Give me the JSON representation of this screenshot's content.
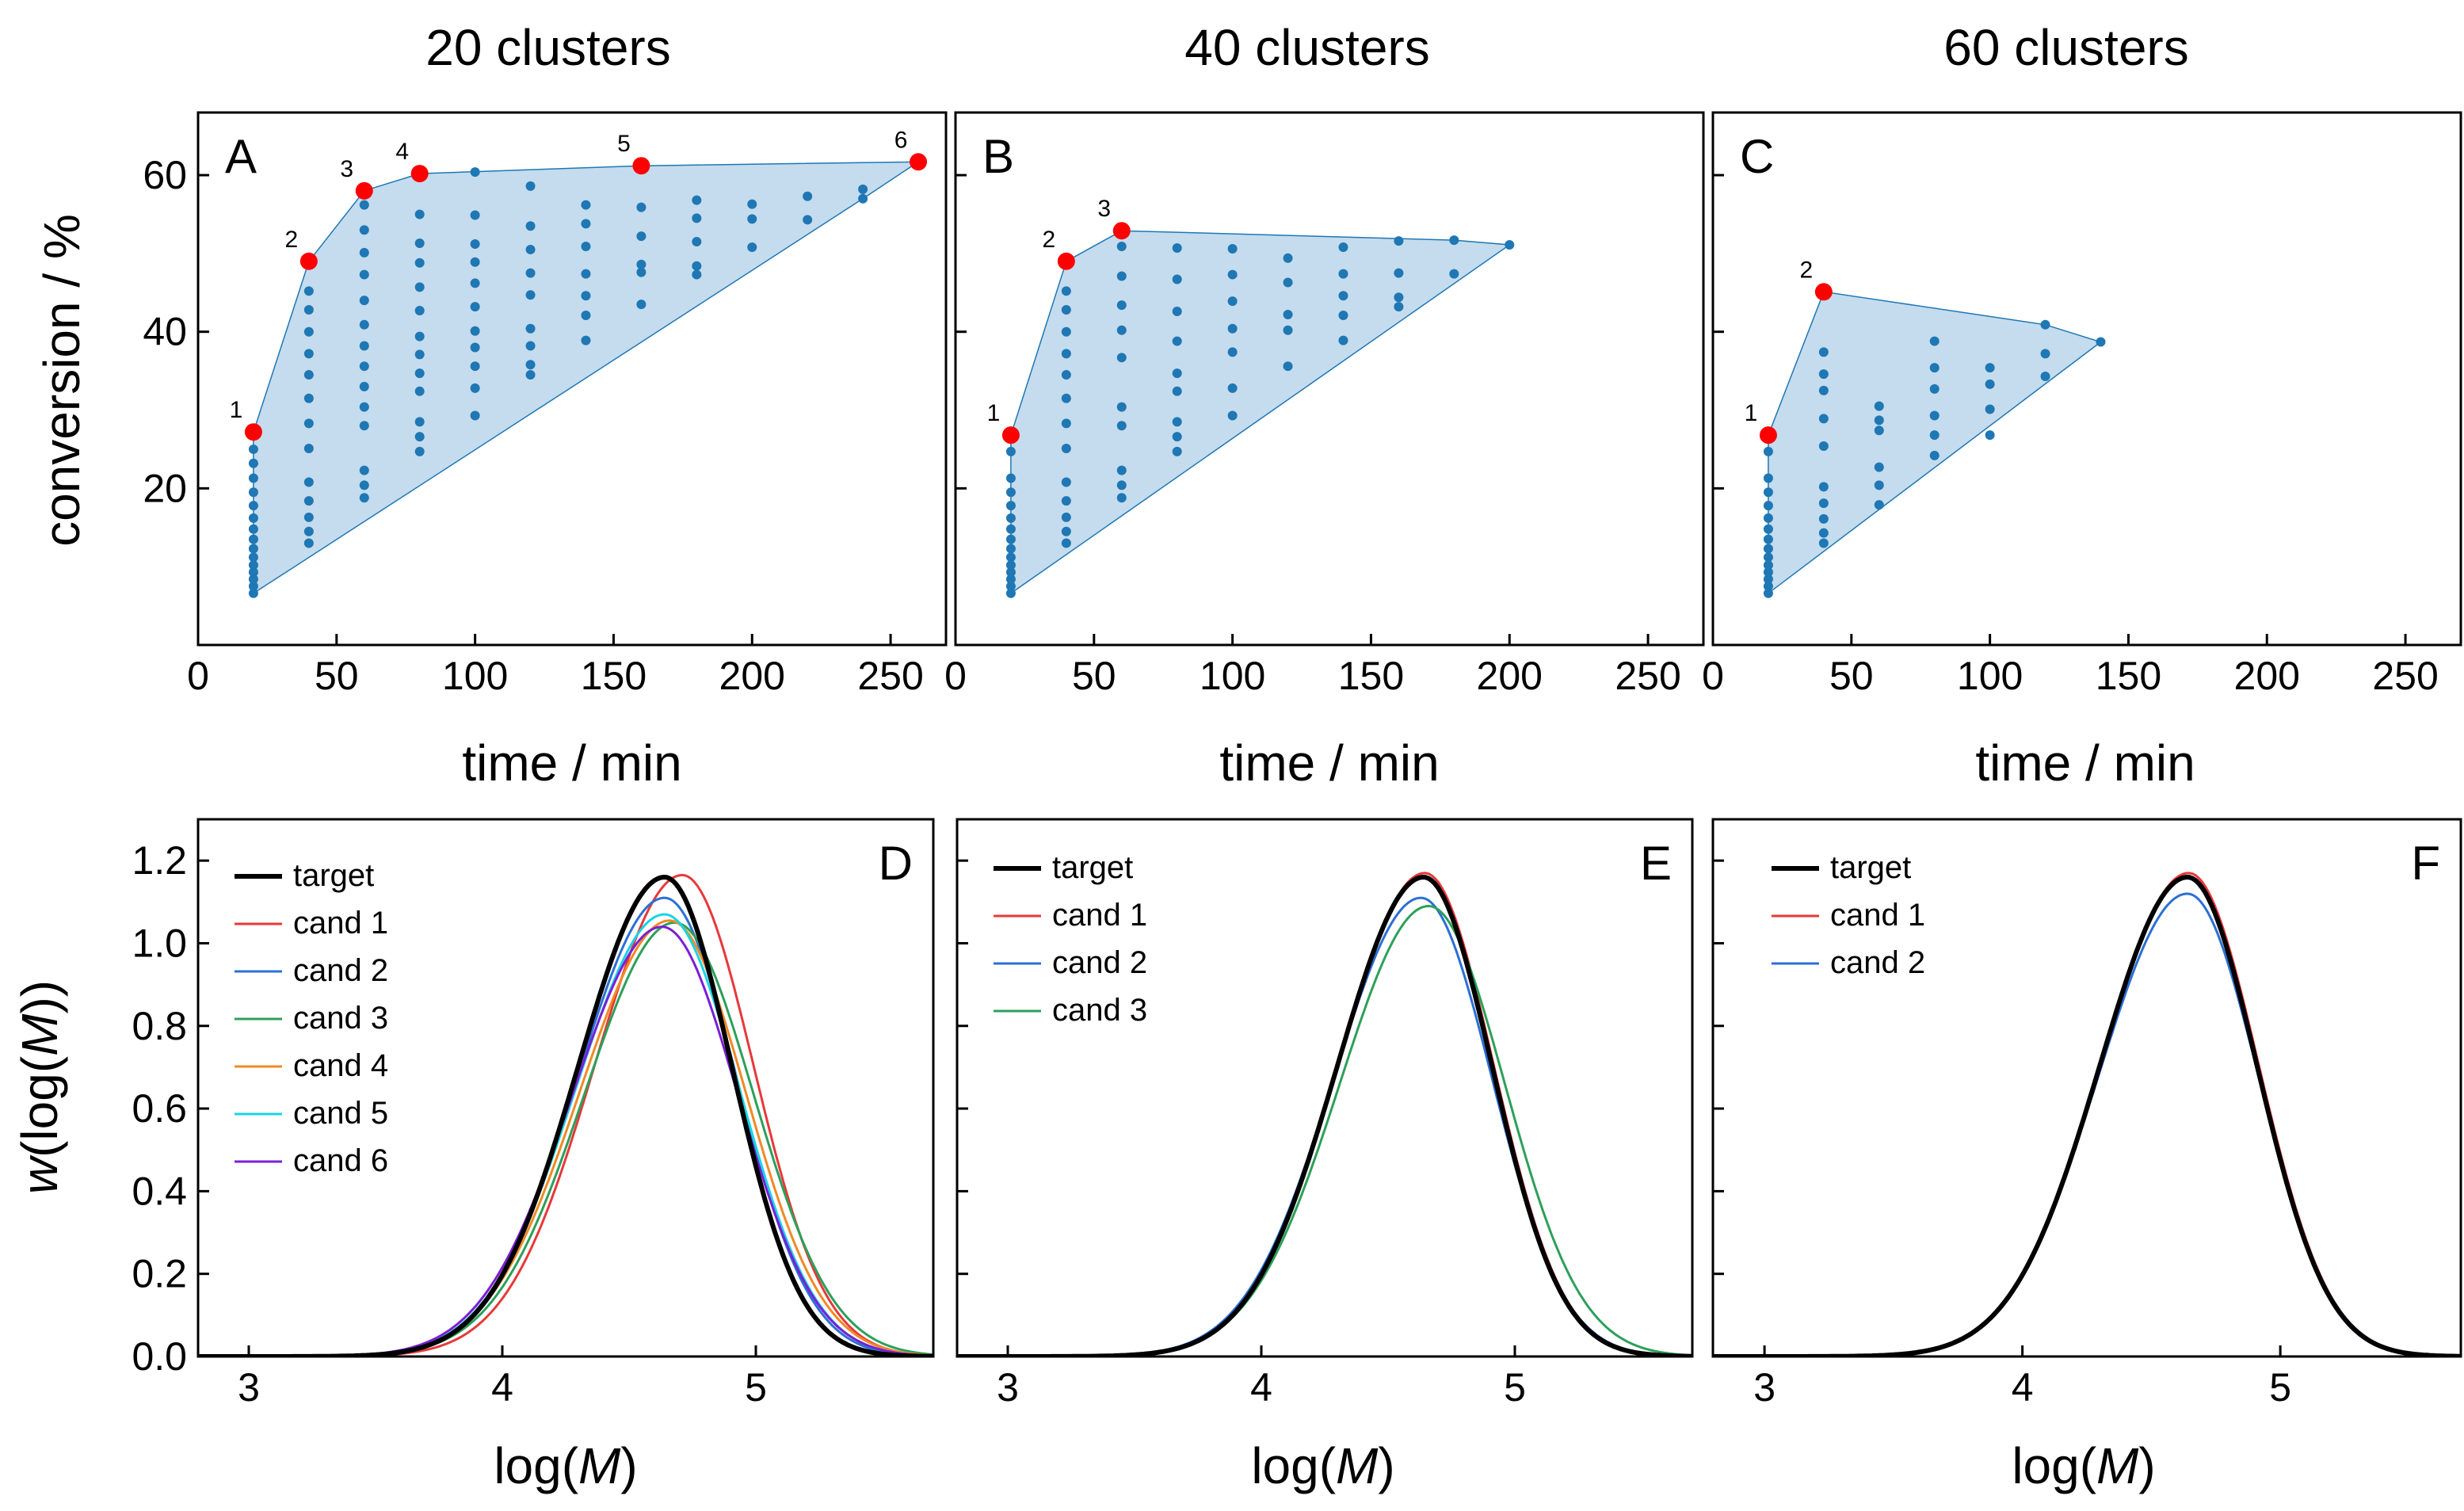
{
  "column_titles": [
    "20 clusters",
    "40 clusters",
    "60 clusters"
  ],
  "axis_titles": {
    "top_x": "time / min",
    "top_y": "conversion / %",
    "bottom_x_prefix": "log(",
    "bottom_x_var": "M",
    "bottom_x_suffix": ")",
    "bottom_y_w": "w",
    "bottom_y_mid": "(log(",
    "bottom_y_var": "M",
    "bottom_y_end": "))"
  },
  "colors": {
    "hull_fill": "#c4dcee",
    "hull_stroke": "#1f77b4",
    "grid_point": "#1f77b4",
    "candidate_point": "#ff0000",
    "target": "#000000",
    "cand1": "#e8383a",
    "cand2": "#2b6fd6",
    "cand3": "#2ca05a",
    "cand4": "#f08a24",
    "cand5": "#19d4e6",
    "cand6": "#7a1fd6"
  },
  "chart_data": [
    {
      "type": "scatter",
      "panel": "A",
      "title": "20 clusters",
      "xlabel": "time / min",
      "ylabel": "conversion / %",
      "xlim": [
        0,
        270
      ],
      "ylim": [
        0,
        68
      ],
      "xticks": [
        "0",
        "50",
        "100",
        "150",
        "200",
        "250"
      ],
      "yticks": [
        "20",
        "40",
        "60"
      ],
      "hull": [
        [
          20,
          6.6
        ],
        [
          20,
          27.2
        ],
        [
          40,
          49
        ],
        [
          60,
          58
        ],
        [
          80,
          60.2
        ],
        [
          160,
          61.2
        ],
        [
          260,
          61.7
        ],
        [
          240,
          57
        ]
      ],
      "grid_columns": [
        {
          "x": 20,
          "y": [
            6.6,
            7.5,
            8.4,
            9.3,
            10.2,
            11.2,
            12.3,
            13.5,
            14.8,
            16.2,
            17.8,
            19.5,
            21.3,
            23.2,
            25.0
          ]
        },
        {
          "x": 40,
          "y": [
            13,
            14.5,
            16.3,
            18.4,
            20.8,
            25.1,
            28.3,
            31.5,
            34.5,
            37.2,
            40,
            42.8,
            45.2
          ]
        },
        {
          "x": 60,
          "y": [
            18.8,
            20.4,
            22.3,
            28,
            30.4,
            33,
            35.6,
            38.2,
            40.9,
            44,
            47.3,
            50.1,
            53,
            56.2
          ]
        },
        {
          "x": 80,
          "y": [
            24.7,
            26.6,
            28.5,
            32.4,
            34.7,
            37.1,
            39.4,
            42.7,
            45.7,
            48.8,
            51.3,
            55
          ]
        },
        {
          "x": 100,
          "y": [
            29.3,
            32.8,
            35.6,
            38,
            40.1,
            43.2,
            46.2,
            48.9,
            51.2,
            54.9,
            60.4
          ]
        },
        {
          "x": 120,
          "y": [
            34.5,
            35.8,
            38.2,
            40.4,
            44.7,
            47.5,
            50.5,
            53.5,
            58.6
          ]
        },
        {
          "x": 140,
          "y": [
            38.9,
            42.1,
            44.6,
            47.4,
            50.9,
            53.8,
            56.2
          ]
        },
        {
          "x": 160,
          "y": [
            43.5,
            47.6,
            48.6,
            52.2,
            55.9
          ]
        },
        {
          "x": 180,
          "y": [
            47.3,
            48.4,
            51.5,
            54.5,
            56.8
          ]
        },
        {
          "x": 200,
          "y": [
            50.8,
            54.4,
            56.3
          ]
        },
        {
          "x": 220,
          "y": [
            54.3,
            57.3
          ]
        },
        {
          "x": 240,
          "y": [
            57,
            58.2
          ]
        }
      ],
      "candidates": [
        {
          "label": "1",
          "x": 20,
          "y": 27.2
        },
        {
          "label": "2",
          "x": 40,
          "y": 49.0
        },
        {
          "label": "3",
          "x": 60,
          "y": 58.0
        },
        {
          "label": "4",
          "x": 80,
          "y": 60.2
        },
        {
          "label": "5",
          "x": 160,
          "y": 61.2
        },
        {
          "label": "6",
          "x": 260,
          "y": 61.7
        }
      ]
    },
    {
      "type": "scatter",
      "panel": "B",
      "title": "40 clusters",
      "xlabel": "time / min",
      "ylabel": "conversion / %",
      "xlim": [
        0,
        270
      ],
      "ylim": [
        0,
        68
      ],
      "xticks": [
        "0",
        "50",
        "100",
        "150",
        "200",
        "250"
      ],
      "yticks": [
        "20",
        "40",
        "60"
      ],
      "hull": [
        [
          20,
          6.6
        ],
        [
          20,
          26.8
        ],
        [
          40,
          49
        ],
        [
          60,
          52.9
        ],
        [
          180,
          51.7
        ],
        [
          200,
          51.1
        ]
      ],
      "grid_columns": [
        {
          "x": 20,
          "y": [
            6.6,
            7.5,
            8.4,
            9.3,
            10.2,
            11.2,
            12.3,
            13.5,
            14.8,
            16.2,
            17.8,
            19.5,
            21.3,
            24.7
          ]
        },
        {
          "x": 40,
          "y": [
            13,
            14.5,
            16.3,
            18.4,
            20.8,
            25.1,
            28.3,
            31.5,
            34.5,
            37.2,
            40,
            42.8,
            45.2
          ]
        },
        {
          "x": 60,
          "y": [
            18.8,
            20.4,
            22.3,
            28,
            30.4,
            36.7,
            40.2,
            43.4,
            47.1,
            50.9
          ]
        },
        {
          "x": 80,
          "y": [
            24.7,
            26.6,
            28.5,
            32.4,
            34.7,
            38.8,
            42.6,
            46.7,
            50.7
          ]
        },
        {
          "x": 100,
          "y": [
            29.3,
            32.8,
            37.4,
            40.4,
            43.9,
            47.3,
            50.6
          ]
        },
        {
          "x": 120,
          "y": [
            35.6,
            40.2,
            42.2,
            46.3,
            49.4
          ]
        },
        {
          "x": 140,
          "y": [
            38.9,
            42.1,
            44.6,
            47.4,
            50.8
          ]
        },
        {
          "x": 160,
          "y": [
            43.2,
            44.4,
            47.5,
            51.6
          ]
        },
        {
          "x": 180,
          "y": [
            47.4,
            51.7
          ]
        },
        {
          "x": 200,
          "y": [
            51.1
          ]
        }
      ],
      "candidates": [
        {
          "label": "1",
          "x": 20,
          "y": 26.8
        },
        {
          "label": "2",
          "x": 40,
          "y": 49.0
        },
        {
          "label": "3",
          "x": 60,
          "y": 52.9
        }
      ]
    },
    {
      "type": "scatter",
      "panel": "C",
      "title": "60 clusters",
      "xlabel": "time / min",
      "ylabel": "conversion / %",
      "xlim": [
        0,
        270
      ],
      "ylim": [
        0,
        68
      ],
      "xticks": [
        "0",
        "50",
        "100",
        "150",
        "200",
        "250"
      ],
      "yticks": [
        "20",
        "40",
        "60"
      ],
      "hull": [
        [
          20,
          6.6
        ],
        [
          20,
          26.8
        ],
        [
          40,
          45.1
        ],
        [
          120,
          40.9
        ],
        [
          140,
          38.7
        ]
      ],
      "grid_columns": [
        {
          "x": 20,
          "y": [
            6.6,
            7.5,
            8.4,
            9.3,
            10.2,
            11.2,
            12.3,
            13.5,
            14.8,
            16.2,
            17.8,
            19.5,
            21.3,
            24.7
          ]
        },
        {
          "x": 40,
          "y": [
            13,
            14.3,
            16.1,
            18.1,
            20.2,
            25.4,
            28.9,
            32.5,
            34.6,
            37.4
          ]
        },
        {
          "x": 60,
          "y": [
            17.9,
            20.4,
            22.7,
            27.4,
            28.7,
            30.5
          ]
        },
        {
          "x": 80,
          "y": [
            24.2,
            26.8,
            29.3,
            32.7,
            35.4,
            38.8
          ]
        },
        {
          "x": 100,
          "y": [
            26.8,
            30.1,
            33.3,
            35.4
          ]
        },
        {
          "x": 120,
          "y": [
            34.3,
            37.2,
            40.9
          ]
        },
        {
          "x": 140,
          "y": [
            38.7
          ]
        }
      ],
      "candidates": [
        {
          "label": "1",
          "x": 20,
          "y": 26.8
        },
        {
          "label": "2",
          "x": 40,
          "y": 45.1
        }
      ]
    },
    {
      "type": "line",
      "panel": "D",
      "xlabel": "log(M)",
      "ylabel": "w(log(M))",
      "xlim": [
        2.8,
        5.7
      ],
      "ylim": [
        0,
        1.3
      ],
      "xticks": [
        "3",
        "4",
        "5"
      ],
      "yticks": [
        "0.0",
        "0.2",
        "0.4",
        "0.6",
        "0.8",
        "1.0",
        "1.2"
      ],
      "series": [
        {
          "name": "target",
          "key": "target",
          "mu": 4.64,
          "sigma_left": 0.34,
          "sigma_right": 0.265,
          "peak": 1.16
        },
        {
          "name": "cand 1",
          "key": "cand1",
          "mu": 4.71,
          "sigma_left": 0.345,
          "sigma_right": 0.28,
          "peak": 1.165
        },
        {
          "name": "cand 2",
          "key": "cand2",
          "mu": 4.64,
          "sigma_left": 0.345,
          "sigma_right": 0.285,
          "peak": 1.11
        },
        {
          "name": "cand 3",
          "key": "cand3",
          "mu": 4.68,
          "sigma_left": 0.355,
          "sigma_right": 0.31,
          "peak": 1.05
        },
        {
          "name": "cand 4",
          "key": "cand4",
          "mu": 4.66,
          "sigma_left": 0.355,
          "sigma_right": 0.3,
          "peak": 1.055
        },
        {
          "name": "cand 5",
          "key": "cand5",
          "mu": 4.64,
          "sigma_left": 0.35,
          "sigma_right": 0.295,
          "peak": 1.07
        },
        {
          "name": "cand 6",
          "key": "cand6",
          "mu": 4.63,
          "sigma_left": 0.355,
          "sigma_right": 0.3,
          "peak": 1.04
        }
      ]
    },
    {
      "type": "line",
      "panel": "E",
      "xlabel": "log(M)",
      "ylabel": "w(log(M))",
      "xlim": [
        2.8,
        5.7
      ],
      "ylim": [
        0,
        1.3
      ],
      "xticks": [
        "3",
        "4",
        "5"
      ],
      "yticks": [
        "0.0",
        "0.2",
        "0.4",
        "0.6",
        "0.8",
        "1.0",
        "1.2"
      ],
      "series": [
        {
          "name": "target",
          "key": "target",
          "mu": 4.64,
          "sigma_left": 0.34,
          "sigma_right": 0.27,
          "peak": 1.16
        },
        {
          "name": "cand 1",
          "key": "cand1",
          "mu": 4.645,
          "sigma_left": 0.34,
          "sigma_right": 0.27,
          "peak": 1.17
        },
        {
          "name": "cand 2",
          "key": "cand2",
          "mu": 4.63,
          "sigma_left": 0.345,
          "sigma_right": 0.28,
          "peak": 1.11
        },
        {
          "name": "cand 3",
          "key": "cand3",
          "mu": 4.66,
          "sigma_left": 0.35,
          "sigma_right": 0.3,
          "peak": 1.09
        }
      ]
    },
    {
      "type": "line",
      "panel": "F",
      "xlabel": "log(M)",
      "ylabel": "w(log(M))",
      "xlim": [
        2.8,
        5.7
      ],
      "ylim": [
        0,
        1.3
      ],
      "xticks": [
        "3",
        "4",
        "5"
      ],
      "yticks": [
        "0.0",
        "0.2",
        "0.4",
        "0.6",
        "0.8",
        "1.0",
        "1.2"
      ],
      "series": [
        {
          "name": "target",
          "key": "target",
          "mu": 4.64,
          "sigma_left": 0.34,
          "sigma_right": 0.27,
          "peak": 1.16
        },
        {
          "name": "cand 1",
          "key": "cand1",
          "mu": 4.645,
          "sigma_left": 0.34,
          "sigma_right": 0.27,
          "peak": 1.17
        },
        {
          "name": "cand 2",
          "key": "cand2",
          "mu": 4.64,
          "sigma_left": 0.345,
          "sigma_right": 0.275,
          "peak": 1.12
        }
      ]
    }
  ]
}
